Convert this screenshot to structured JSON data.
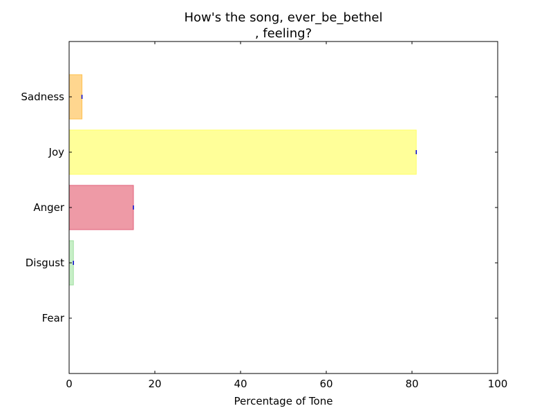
{
  "chart_data": {
    "type": "bar",
    "orientation": "horizontal",
    "title_lines": [
      "How's the song, ever_be_bethel",
      ", feeling?"
    ],
    "xlabel": "Percentage of Tone",
    "ylabel": "",
    "xlim": [
      0,
      100
    ],
    "xticks": [
      "0",
      "20",
      "40",
      "60",
      "80",
      "100"
    ],
    "categories": [
      "Sadness",
      "Joy",
      "Anger",
      "Disgust",
      "Fear"
    ],
    "values": [
      3,
      81,
      15,
      1,
      0
    ],
    "colors": {
      "Sadness": "#ffd68f",
      "Joy": "#ffff99",
      "Anger": "#ee9aa6",
      "Disgust": "#c7efc7",
      "Fear": "#c9d7ee"
    },
    "edge_colors": {
      "Sadness": "#ffc04d",
      "Joy": "#ffff66",
      "Anger": "#e0607a",
      "Disgust": "#9fdf9f",
      "Fear": "#9fb8df"
    },
    "error_marker_color": "#0000cc",
    "grid": false,
    "legend": "none"
  }
}
